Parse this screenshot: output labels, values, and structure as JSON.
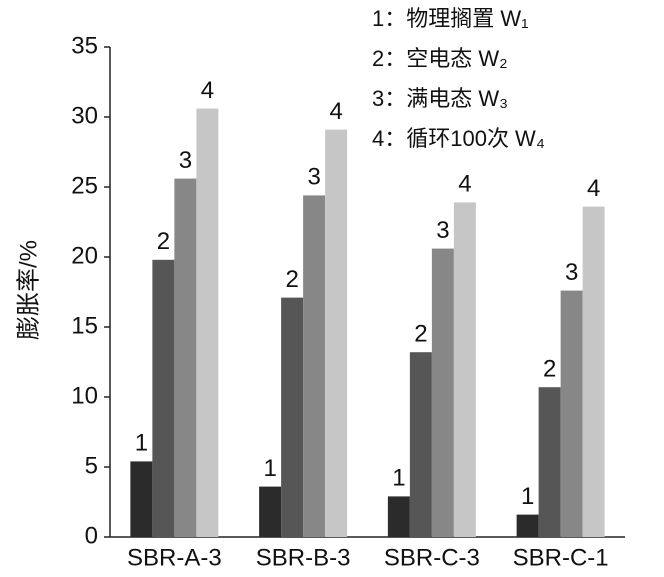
{
  "chart_data": {
    "type": "bar",
    "y_label": "膨胀率/%",
    "categories": [
      "SBR-A-3",
      "SBR-B-3",
      "SBR-C-3",
      "SBR-C-1"
    ],
    "series": [
      {
        "name": "1：物理搁置 W₁",
        "label": "1",
        "color": "#2b2b2b",
        "values": [
          5.4,
          3.6,
          2.9,
          1.6
        ]
      },
      {
        "name": "2：空电态 W₂",
        "label": "2",
        "color": "#565656",
        "values": [
          19.8,
          17.1,
          13.2,
          10.7
        ]
      },
      {
        "name": "3：满电态 W₃",
        "label": "3",
        "color": "#878787",
        "values": [
          25.6,
          24.4,
          20.6,
          17.6
        ]
      },
      {
        "name": "4：循环100次 W₄",
        "label": "4",
        "color": "#c6c6c6",
        "values": [
          30.6,
          29.1,
          23.9,
          23.6
        ]
      }
    ],
    "ylim": [
      0,
      35
    ],
    "yticks": [
      0,
      5,
      10,
      15,
      20,
      25,
      30,
      35
    ]
  }
}
